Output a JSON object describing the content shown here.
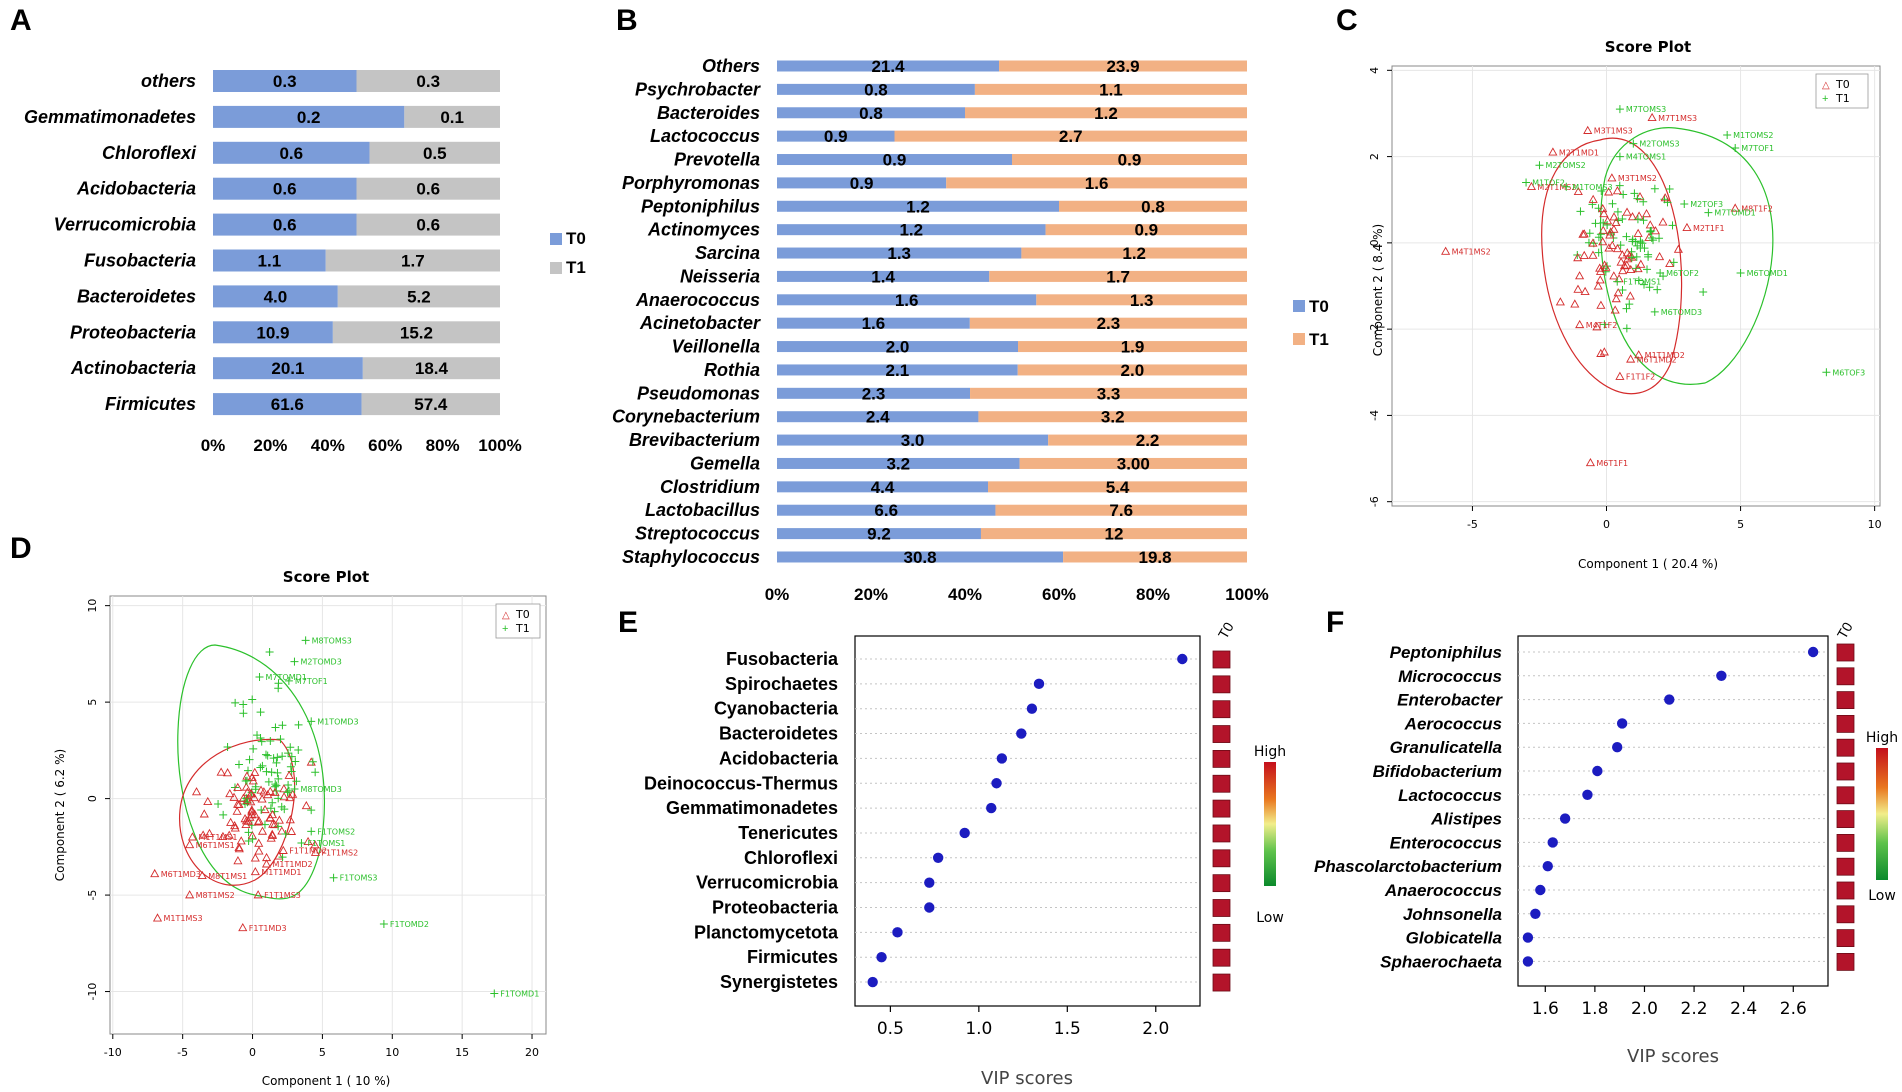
{
  "colors": {
    "t0_bar": "#7b9cd9",
    "t1_bar_a": "#c4c4c4",
    "t1_bar_b": "#f2b184",
    "t0_point": "#d42b2b",
    "t1_point": "#2bc02b",
    "vip_dot": "#1c1cc0",
    "heat_box": "#b3142a"
  },
  "chart_data": [
    {
      "panel": "A",
      "type": "bar",
      "orientation": "horizontal-stacked-100",
      "categories": [
        "others",
        "Gemmatimonadetes",
        "Chloroflexi",
        "Acidobacteria",
        "Verrucomicrobia",
        "Fusobacteria",
        "Bacteroidetes",
        "Proteobacteria",
        "Actinobacteria",
        "Firmicutes"
      ],
      "series": [
        {
          "name": "T0",
          "values": [
            0.3,
            0.2,
            0.6,
            0.6,
            0.6,
            1.1,
            4.0,
            10.9,
            20.1,
            61.6
          ],
          "labels": [
            "0.3",
            "0.2",
            "0.6",
            "0.6",
            "0.6",
            "1.1",
            "4.0",
            "10.9",
            "20.1",
            "61.6"
          ]
        },
        {
          "name": "T1",
          "values": [
            0.3,
            0.1,
            0.5,
            0.6,
            0.6,
            1.7,
            5.2,
            15.2,
            18.4,
            57.4
          ],
          "labels": [
            "0.3",
            "0.1",
            "0.5",
            "0.6",
            "0.6",
            "1.7",
            "5.2",
            "15.2",
            "18.4",
            "57.4"
          ]
        }
      ],
      "xticks": [
        "0%",
        "20%",
        "40%",
        "60%",
        "80%",
        "100%"
      ],
      "legend": [
        "T0",
        "T1"
      ]
    },
    {
      "panel": "B",
      "type": "bar",
      "orientation": "horizontal-stacked-100",
      "categories": [
        "Others",
        "Psychrobacter",
        "Bacteroides",
        "Lactococcus",
        "Prevotella",
        "Porphyromonas",
        "Peptoniphilus",
        "Actinomyces",
        "Sarcina",
        "Neisseria",
        "Anaerococcus",
        "Acinetobacter",
        "Veillonella",
        "Rothia",
        "Pseudomonas",
        "Corynebacterium",
        "Brevibacterium",
        "Gemella",
        "Clostridium",
        "Lactobacillus",
        "Streptococcus",
        "Staphylococcus"
      ],
      "series": [
        {
          "name": "T0",
          "values": [
            21.4,
            0.8,
            0.8,
            0.9,
            0.9,
            0.9,
            1.2,
            1.2,
            1.3,
            1.4,
            1.6,
            1.6,
            2.0,
            2.1,
            2.3,
            2.4,
            3.0,
            3.2,
            4.4,
            6.6,
            9.2,
            30.8
          ],
          "labels": [
            "21.4",
            "0.8",
            "0.8",
            "0.9",
            "0.9",
            "0.9",
            "1.2",
            "1.2",
            "1.3",
            "1.4",
            "1.6",
            "1.6",
            "2.0",
            "2.1",
            "2.3",
            "2.4",
            "3.0",
            "3.2",
            "4.4",
            "6.6",
            "9.2",
            "30.8"
          ]
        },
        {
          "name": "T1",
          "values": [
            23.9,
            1.1,
            1.2,
            2.7,
            0.9,
            1.6,
            0.8,
            0.9,
            1.2,
            1.7,
            1.3,
            2.3,
            1.9,
            2.0,
            3.3,
            3.2,
            2.2,
            3.0,
            5.4,
            7.6,
            12,
            19.8
          ],
          "labels": [
            "23.9",
            "1.1",
            "1.2",
            "2.7",
            "0.9",
            "1.6",
            "0.8",
            "0.9",
            "1.2",
            "1.7",
            "1.3",
            "2.3",
            "1.9",
            "2.0",
            "3.3",
            "3.2",
            "2.2",
            "3.00",
            "5.4",
            "7.6",
            "12",
            "19.8"
          ]
        }
      ],
      "xticks": [
        "0%",
        "20%",
        "40%",
        "60%",
        "80%",
        "100%"
      ],
      "legend": [
        "T0",
        "T1"
      ]
    },
    {
      "panel": "C",
      "type": "scatter",
      "title": "Score Plot",
      "xlabel": "Component 1 ( 20.4 %)",
      "ylabel": "Component 2 ( 8.4 %)",
      "xlim": [
        -8,
        10.2
      ],
      "ylim": [
        -6.1,
        4.1
      ],
      "xticks": [
        -5,
        0,
        5,
        10
      ],
      "yticks": [
        -6,
        -4,
        -2,
        0,
        2,
        4
      ],
      "legend": [
        "T0",
        "T1"
      ],
      "labeled_points": {
        "T0": [
          {
            "x": -6,
            "y": -0.2,
            "label": "M4T1MS2"
          },
          {
            "x": -0.7,
            "y": 2.6,
            "label": "M3T1MS3"
          },
          {
            "x": 1.7,
            "y": 2.9,
            "label": "M7T1MS3"
          },
          {
            "x": -2,
            "y": 2.1,
            "label": "M2T1MD1"
          },
          {
            "x": -2.8,
            "y": 1.3,
            "label": "M2T1MS2"
          },
          {
            "x": 0.2,
            "y": 1.5,
            "label": "M3T1MS2"
          },
          {
            "x": 4.8,
            "y": 0.8,
            "label": "M8T1F2"
          },
          {
            "x": 3,
            "y": 0.35,
            "label": "M2T1F1"
          },
          {
            "x": 1.2,
            "y": -2.6,
            "label": "M1T1MD2"
          },
          {
            "x": 0.9,
            "y": -2.7,
            "label": "M6T1MD2"
          },
          {
            "x": 0.5,
            "y": -3.1,
            "label": "F1T1F2"
          },
          {
            "x": -0.6,
            "y": -5.1,
            "label": "M6T1F1"
          },
          {
            "x": -1,
            "y": -1.9,
            "label": "M4T1F2"
          }
        ],
        "T1": [
          {
            "x": 0.5,
            "y": 3.1,
            "label": "M7TOMS3"
          },
          {
            "x": 4.5,
            "y": 2.5,
            "label": "M1TOMS2"
          },
          {
            "x": 4.8,
            "y": 2.2,
            "label": "M7TOF1"
          },
          {
            "x": 1,
            "y": 2.3,
            "label": "M2TOMS3"
          },
          {
            "x": 0.5,
            "y": 2,
            "label": "M4TOMS1"
          },
          {
            "x": -2.5,
            "y": 1.8,
            "label": "M2TOMS2"
          },
          {
            "x": -3,
            "y": 1.4,
            "label": "M1TOF2"
          },
          {
            "x": -1.5,
            "y": 1.3,
            "label": "M1TOMS3"
          },
          {
            "x": 3.8,
            "y": 0.7,
            "label": "M7TOMD1"
          },
          {
            "x": 2.9,
            "y": 0.9,
            "label": "M2TOF3"
          },
          {
            "x": 5,
            "y": -0.7,
            "label": "M6TOMD1"
          },
          {
            "x": 2,
            "y": -0.7,
            "label": "M6TOF2"
          },
          {
            "x": 1.8,
            "y": -1.6,
            "label": "M6TOMD3"
          },
          {
            "x": 8.2,
            "y": -3,
            "label": "M6TOF3"
          },
          {
            "x": 0.4,
            "y": -0.9,
            "label": "F1TOMS1"
          }
        ]
      }
    },
    {
      "panel": "D",
      "type": "scatter",
      "title": "Score Plot",
      "xlabel": "Component 1 ( 10 %)",
      "ylabel": "Component 2 ( 6.2 %)",
      "xlim": [
        -10.2,
        21
      ],
      "ylim": [
        -12.2,
        10.5
      ],
      "xticks": [
        -10,
        -5,
        0,
        5,
        10,
        15,
        20
      ],
      "yticks": [
        -10,
        -5,
        0,
        5,
        10
      ],
      "legend": [
        "T0",
        "T1"
      ],
      "labeled_points": {
        "T0": [
          {
            "x": -7,
            "y": -3.9,
            "label": "M6T1MD3"
          },
          {
            "x": -3.6,
            "y": -4,
            "label": "M8T1MS1"
          },
          {
            "x": -4.5,
            "y": -5,
            "label": "M8T1MS2"
          },
          {
            "x": -6.8,
            "y": -6.2,
            "label": "M1T1MS3"
          },
          {
            "x": -0.7,
            "y": -6.7,
            "label": "F1T1MD3"
          },
          {
            "x": 0.4,
            "y": -5,
            "label": "F1T1MS3"
          },
          {
            "x": 0.2,
            "y": -3.8,
            "label": "M1T1MD1"
          },
          {
            "x": 1,
            "y": -3.4,
            "label": "M1T1MD2"
          },
          {
            "x": 2.2,
            "y": -2.7,
            "label": "F1T1MD2"
          },
          {
            "x": 4.5,
            "y": -2.8,
            "label": "F1T1MS2"
          },
          {
            "x": -4.5,
            "y": -2.4,
            "label": "M6T1MS1"
          },
          {
            "x": -4.3,
            "y": -2,
            "label": "M1T1MS1"
          }
        ],
        "T1": [
          {
            "x": 3.8,
            "y": 8.2,
            "label": "M8TOMS3"
          },
          {
            "x": 3,
            "y": 7.1,
            "label": "M2TOMD3"
          },
          {
            "x": 0.5,
            "y": 6.3,
            "label": "M7TOMD1"
          },
          {
            "x": 2.6,
            "y": 6.1,
            "label": "M7TOF1"
          },
          {
            "x": 4.2,
            "y": 4,
            "label": "M1TOMD3"
          },
          {
            "x": 4.2,
            "y": -1.7,
            "label": "F1TOMS2"
          },
          {
            "x": 3.5,
            "y": -2.3,
            "label": "F1TOMS1"
          },
          {
            "x": 5.8,
            "y": -4.1,
            "label": "F1TOMS3"
          },
          {
            "x": 9.4,
            "y": -6.5,
            "label": "F1TOMD2"
          },
          {
            "x": 17.3,
            "y": -10.1,
            "label": "F1TOMD1"
          },
          {
            "x": 3,
            "y": 0.5,
            "label": "M8TOMD3"
          }
        ]
      }
    },
    {
      "panel": "E",
      "type": "scatter",
      "kind": "vip-dot-plot",
      "categories": [
        "Fusobacteria",
        "Spirochaetes",
        "Cyanobacteria",
        "Bacteroidetes",
        "Acidobacteria",
        "Deinococcus-Thermus",
        "Gemmatimonadetes",
        "Tenericutes",
        "Chloroflexi",
        "Verrucomicrobia",
        "Proteobacteria",
        "Planctomycetota",
        "Firmicutes",
        "Synergistetes"
      ],
      "values": [
        2.15,
        1.34,
        1.3,
        1.24,
        1.13,
        1.1,
        1.07,
        0.92,
        0.77,
        0.72,
        0.72,
        0.54,
        0.45,
        0.4
      ],
      "xlabel": "VIP scores",
      "xlim": [
        0.3,
        2.25
      ],
      "xticks": [
        0.5,
        1.0,
        1.5,
        2.0
      ],
      "xtick_labels": [
        "0.5",
        "1.0",
        "1.5",
        "2.0"
      ],
      "heat_column": "T0",
      "colorbar": [
        "High",
        "Low"
      ]
    },
    {
      "panel": "F",
      "type": "scatter",
      "kind": "vip-dot-plot",
      "categories": [
        "Peptoniphilus",
        "Micrococcus",
        "Enterobacter",
        "Aerococcus",
        "Granulicatella",
        "Bifidobacterium",
        "Lactococcus",
        "Alistipes",
        "Enterococcus",
        "Phascolarctobacterium",
        "Anaerococcus",
        "Johnsonella",
        "Globicatella",
        "Sphaerochaeta"
      ],
      "values": [
        2.68,
        2.31,
        2.1,
        1.91,
        1.89,
        1.81,
        1.77,
        1.68,
        1.63,
        1.61,
        1.58,
        1.56,
        1.53,
        1.53
      ],
      "xlabel": "VIP scores",
      "xlim": [
        1.49,
        2.74
      ],
      "xticks": [
        1.6,
        1.8,
        2.0,
        2.2,
        2.4,
        2.6
      ],
      "xtick_labels": [
        "1.6",
        "1.8",
        "2.0",
        "2.2",
        "2.4",
        "2.6"
      ],
      "heat_column": "T0",
      "colorbar": [
        "High",
        "Low"
      ]
    }
  ]
}
